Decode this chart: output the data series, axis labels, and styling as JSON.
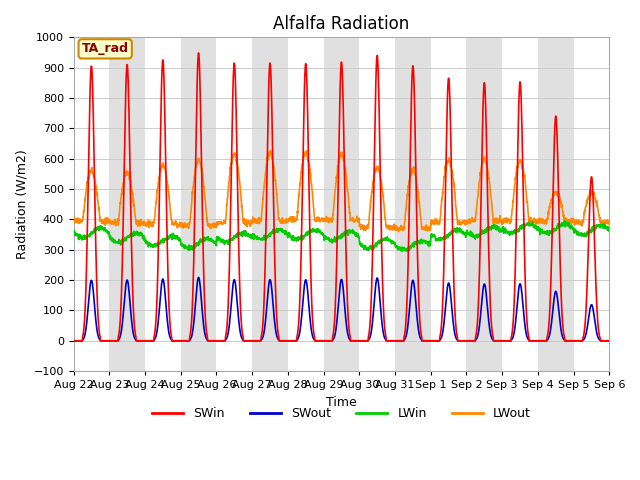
{
  "title": "Alfalfa Radiation",
  "ylabel": "Radiation (W/m2)",
  "xlabel": "Time",
  "ylim": [
    -100,
    1000
  ],
  "tag_label": "TA_rad",
  "x_tick_labels": [
    "Aug 22",
    "Aug 23",
    "Aug 24",
    "Aug 25",
    "Aug 26",
    "Aug 27",
    "Aug 28",
    "Aug 29",
    "Aug 30",
    "Aug 31",
    "Sep 1",
    "Sep 2",
    "Sep 3",
    "Sep 4",
    "Sep 5",
    "Sep 6"
  ],
  "series": {
    "SWin": {
      "color": "#ff0000",
      "lw": 1.2
    },
    "SWout": {
      "color": "#0000cc",
      "lw": 1.2
    },
    "LWin": {
      "color": "#00cc00",
      "lw": 1.2
    },
    "LWout": {
      "color": "#ff8800",
      "lw": 1.2
    }
  },
  "n_days": 15,
  "points_per_day": 144,
  "background_stripe_color": "#e0e0e0",
  "grid_color": "#cccccc",
  "title_fontsize": 12,
  "axis_label_fontsize": 9,
  "tick_fontsize": 8,
  "SWin_peaks": [
    905,
    910,
    925,
    948,
    915,
    915,
    913,
    918,
    940,
    906,
    865,
    850,
    853,
    740,
    540
  ],
  "LWout_peaks": [
    560,
    555,
    580,
    598,
    615,
    620,
    618,
    615,
    570,
    565,
    595,
    600,
    595,
    490,
    490
  ],
  "LWin_base": [
    355,
    340,
    330,
    320,
    340,
    350,
    350,
    345,
    320,
    315,
    350,
    360,
    370,
    370,
    365
  ],
  "LWout_base": [
    395,
    390,
    385,
    380,
    390,
    395,
    400,
    398,
    375,
    370,
    390,
    395,
    395,
    395,
    390
  ]
}
